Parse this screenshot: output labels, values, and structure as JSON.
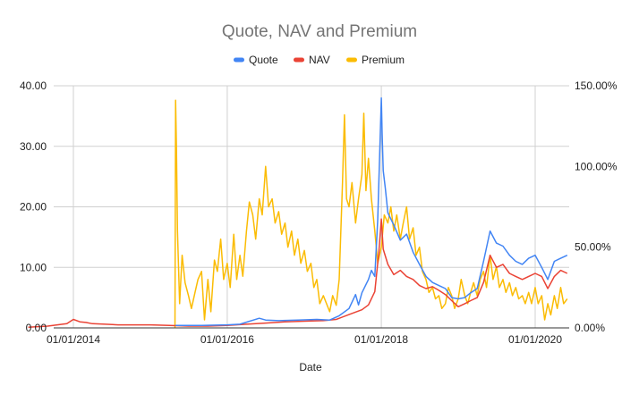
{
  "chart_data": {
    "type": "line",
    "title": "Quote, NAV and Premium",
    "xlabel": "Date",
    "ylabel": "",
    "y2label": "",
    "x_ticks": [
      "01/01/2014",
      "01/01/2016",
      "01/01/2018",
      "01/01/2020"
    ],
    "x_range": [
      "2013-06-01",
      "2020-06-15"
    ],
    "ylim": [
      0,
      40
    ],
    "y_ticks": [
      "0.00",
      "10.00",
      "20.00",
      "30.00",
      "40.00"
    ],
    "y2lim": [
      0,
      150
    ],
    "y2_ticks": [
      "0.00%",
      "50.00%",
      "100.00%",
      "150.00%"
    ],
    "grid": true,
    "legend": "top",
    "series": [
      {
        "name": "Quote",
        "axis": "left",
        "color": "#4285F4",
        "points": [
          [
            "2015-05-01",
            0.4
          ],
          [
            "2015-09-01",
            0.4
          ],
          [
            "2016-01-01",
            0.5
          ],
          [
            "2016-03-01",
            0.6
          ],
          [
            "2016-06-01",
            1.6
          ],
          [
            "2016-07-01",
            1.3
          ],
          [
            "2016-09-01",
            1.2
          ],
          [
            "2016-12-01",
            1.3
          ],
          [
            "2017-03-01",
            1.4
          ],
          [
            "2017-05-01",
            1.3
          ],
          [
            "2017-06-15",
            2.0
          ],
          [
            "2017-08-01",
            3.2
          ],
          [
            "2017-09-01",
            5.5
          ],
          [
            "2017-09-15",
            3.8
          ],
          [
            "2017-10-01",
            5.8
          ],
          [
            "2017-11-01",
            8.0
          ],
          [
            "2017-11-15",
            9.5
          ],
          [
            "2017-12-01",
            8.5
          ],
          [
            "2017-12-15",
            18.0
          ],
          [
            "2018-01-01",
            38.0
          ],
          [
            "2018-01-05",
            32.0
          ],
          [
            "2018-01-10",
            26.0
          ],
          [
            "2018-01-20",
            23.0
          ],
          [
            "2018-02-01",
            19.0
          ],
          [
            "2018-03-01",
            17.0
          ],
          [
            "2018-04-01",
            14.5
          ],
          [
            "2018-05-01",
            15.5
          ],
          [
            "2018-06-01",
            12.5
          ],
          [
            "2018-07-01",
            10.5
          ],
          [
            "2018-08-01",
            8.5
          ],
          [
            "2018-09-01",
            7.5
          ],
          [
            "2018-10-01",
            7.0
          ],
          [
            "2018-11-01",
            6.5
          ],
          [
            "2018-12-01",
            5.0
          ],
          [
            "2019-01-01",
            4.8
          ],
          [
            "2019-02-01",
            5.0
          ],
          [
            "2019-03-01",
            5.8
          ],
          [
            "2019-04-01",
            6.5
          ],
          [
            "2019-05-01",
            11.0
          ],
          [
            "2019-06-01",
            16.0
          ],
          [
            "2019-07-01",
            14.0
          ],
          [
            "2019-08-01",
            13.5
          ],
          [
            "2019-09-01",
            12.0
          ],
          [
            "2019-10-01",
            11.0
          ],
          [
            "2019-11-01",
            10.5
          ],
          [
            "2019-12-01",
            11.5
          ],
          [
            "2020-01-01",
            12.0
          ],
          [
            "2020-02-01",
            10.0
          ],
          [
            "2020-03-01",
            8.0
          ],
          [
            "2020-04-01",
            11.0
          ],
          [
            "2020-05-01",
            11.5
          ],
          [
            "2020-06-01",
            12.0
          ]
        ]
      },
      {
        "name": "NAV",
        "axis": "left",
        "color": "#EA4335",
        "points": [
          [
            "2013-06-01",
            0.1
          ],
          [
            "2013-09-01",
            0.3
          ],
          [
            "2013-12-01",
            0.7
          ],
          [
            "2014-01-01",
            1.4
          ],
          [
            "2014-02-01",
            1.0
          ],
          [
            "2014-03-01",
            0.9
          ],
          [
            "2014-04-01",
            0.7
          ],
          [
            "2014-06-01",
            0.6
          ],
          [
            "2014-08-01",
            0.5
          ],
          [
            "2014-10-01",
            0.5
          ],
          [
            "2015-01-01",
            0.5
          ],
          [
            "2015-04-01",
            0.4
          ],
          [
            "2015-07-01",
            0.3
          ],
          [
            "2015-10-01",
            0.3
          ],
          [
            "2016-01-01",
            0.4
          ],
          [
            "2016-04-01",
            0.6
          ],
          [
            "2016-07-01",
            0.8
          ],
          [
            "2016-10-01",
            1.0
          ],
          [
            "2017-01-01",
            1.1
          ],
          [
            "2017-04-01",
            1.2
          ],
          [
            "2017-06-01",
            1.4
          ],
          [
            "2017-08-01",
            2.2
          ],
          [
            "2017-10-01",
            3.0
          ],
          [
            "2017-11-01",
            3.8
          ],
          [
            "2017-12-01",
            6.0
          ],
          [
            "2017-12-20",
            12.5
          ],
          [
            "2018-01-01",
            18.0
          ],
          [
            "2018-01-10",
            13.0
          ],
          [
            "2018-02-01",
            10.5
          ],
          [
            "2018-03-01",
            8.8
          ],
          [
            "2018-04-01",
            9.5
          ],
          [
            "2018-05-01",
            8.5
          ],
          [
            "2018-06-01",
            8.0
          ],
          [
            "2018-07-01",
            7.0
          ],
          [
            "2018-08-01",
            6.5
          ],
          [
            "2018-09-01",
            6.8
          ],
          [
            "2018-10-01",
            6.2
          ],
          [
            "2018-11-01",
            5.5
          ],
          [
            "2018-12-01",
            4.5
          ],
          [
            "2019-01-01",
            3.5
          ],
          [
            "2019-02-01",
            4.0
          ],
          [
            "2019-03-01",
            4.5
          ],
          [
            "2019-04-01",
            5.0
          ],
          [
            "2019-05-01",
            7.5
          ],
          [
            "2019-06-01",
            12.0
          ],
          [
            "2019-07-01",
            10.0
          ],
          [
            "2019-08-01",
            10.5
          ],
          [
            "2019-09-01",
            9.0
          ],
          [
            "2019-10-01",
            8.5
          ],
          [
            "2019-11-01",
            8.0
          ],
          [
            "2019-12-01",
            8.5
          ],
          [
            "2020-01-01",
            9.0
          ],
          [
            "2020-02-01",
            8.5
          ],
          [
            "2020-03-01",
            6.5
          ],
          [
            "2020-04-01",
            8.5
          ],
          [
            "2020-05-01",
            9.5
          ],
          [
            "2020-06-01",
            9.0
          ]
        ]
      },
      {
        "name": "Premium",
        "axis": "right",
        "color": "#FBBC04",
        "points": [
          [
            "2015-04-28",
            0
          ],
          [
            "2015-05-01",
            141
          ],
          [
            "2015-05-05",
            110
          ],
          [
            "2015-05-10",
            60
          ],
          [
            "2015-05-20",
            15
          ],
          [
            "2015-06-01",
            45
          ],
          [
            "2015-06-15",
            28
          ],
          [
            "2015-07-01",
            20
          ],
          [
            "2015-07-15",
            12
          ],
          [
            "2015-08-01",
            22
          ],
          [
            "2015-08-15",
            30
          ],
          [
            "2015-09-01",
            35
          ],
          [
            "2015-09-15",
            5
          ],
          [
            "2015-10-01",
            30
          ],
          [
            "2015-10-15",
            10
          ],
          [
            "2015-11-01",
            42
          ],
          [
            "2015-11-15",
            35
          ],
          [
            "2015-12-01",
            55
          ],
          [
            "2015-12-15",
            30
          ],
          [
            "2016-01-01",
            40
          ],
          [
            "2016-01-15",
            25
          ],
          [
            "2016-02-01",
            58
          ],
          [
            "2016-02-15",
            30
          ],
          [
            "2016-03-01",
            45
          ],
          [
            "2016-03-15",
            32
          ],
          [
            "2016-04-01",
            60
          ],
          [
            "2016-04-15",
            78
          ],
          [
            "2016-05-01",
            70
          ],
          [
            "2016-05-15",
            55
          ],
          [
            "2016-06-01",
            80
          ],
          [
            "2016-06-15",
            70
          ],
          [
            "2016-07-01",
            100
          ],
          [
            "2016-07-15",
            75
          ],
          [
            "2016-08-01",
            80
          ],
          [
            "2016-08-15",
            65
          ],
          [
            "2016-09-01",
            72
          ],
          [
            "2016-09-15",
            58
          ],
          [
            "2016-10-01",
            65
          ],
          [
            "2016-10-15",
            50
          ],
          [
            "2016-11-01",
            60
          ],
          [
            "2016-11-15",
            45
          ],
          [
            "2016-12-01",
            55
          ],
          [
            "2016-12-15",
            40
          ],
          [
            "2017-01-01",
            48
          ],
          [
            "2017-01-15",
            35
          ],
          [
            "2017-02-01",
            40
          ],
          [
            "2017-02-15",
            25
          ],
          [
            "2017-03-01",
            30
          ],
          [
            "2017-03-15",
            15
          ],
          [
            "2017-04-01",
            20
          ],
          [
            "2017-05-01",
            10
          ],
          [
            "2017-05-15",
            20
          ],
          [
            "2017-06-01",
            14
          ],
          [
            "2017-06-15",
            30
          ],
          [
            "2017-07-01",
            90
          ],
          [
            "2017-07-10",
            132
          ],
          [
            "2017-07-20",
            80
          ],
          [
            "2017-08-01",
            75
          ],
          [
            "2017-08-15",
            90
          ],
          [
            "2017-09-01",
            65
          ],
          [
            "2017-09-15",
            80
          ],
          [
            "2017-10-01",
            95
          ],
          [
            "2017-10-10",
            133
          ],
          [
            "2017-10-20",
            85
          ],
          [
            "2017-11-01",
            105
          ],
          [
            "2017-11-15",
            80
          ],
          [
            "2017-12-01",
            60
          ],
          [
            "2017-12-15",
            40
          ],
          [
            "2018-01-01",
            50
          ],
          [
            "2018-01-15",
            70
          ],
          [
            "2018-02-01",
            65
          ],
          [
            "2018-02-15",
            75
          ],
          [
            "2018-03-01",
            60
          ],
          [
            "2018-03-15",
            70
          ],
          [
            "2018-04-01",
            55
          ],
          [
            "2018-04-15",
            65
          ],
          [
            "2018-05-01",
            75
          ],
          [
            "2018-05-15",
            55
          ],
          [
            "2018-06-01",
            62
          ],
          [
            "2018-06-15",
            45
          ],
          [
            "2018-07-01",
            50
          ],
          [
            "2018-07-15",
            35
          ],
          [
            "2018-08-01",
            30
          ],
          [
            "2018-08-15",
            22
          ],
          [
            "2018-09-01",
            25
          ],
          [
            "2018-09-15",
            18
          ],
          [
            "2018-10-01",
            20
          ],
          [
            "2018-10-15",
            12
          ],
          [
            "2018-11-01",
            15
          ],
          [
            "2018-11-15",
            25
          ],
          [
            "2018-12-01",
            20
          ],
          [
            "2018-12-15",
            12
          ],
          [
            "2019-01-01",
            18
          ],
          [
            "2019-01-15",
            30
          ],
          [
            "2019-02-01",
            20
          ],
          [
            "2019-02-15",
            15
          ],
          [
            "2019-03-01",
            22
          ],
          [
            "2019-03-15",
            28
          ],
          [
            "2019-04-01",
            20
          ],
          [
            "2019-04-15",
            30
          ],
          [
            "2019-05-01",
            35
          ],
          [
            "2019-05-15",
            25
          ],
          [
            "2019-06-01",
            45
          ],
          [
            "2019-06-15",
            30
          ],
          [
            "2019-07-01",
            38
          ],
          [
            "2019-07-15",
            25
          ],
          [
            "2019-08-01",
            30
          ],
          [
            "2019-08-15",
            22
          ],
          [
            "2019-09-01",
            28
          ],
          [
            "2019-09-15",
            20
          ],
          [
            "2019-10-01",
            25
          ],
          [
            "2019-10-15",
            18
          ],
          [
            "2019-11-01",
            20
          ],
          [
            "2019-11-15",
            15
          ],
          [
            "2019-12-01",
            22
          ],
          [
            "2019-12-15",
            15
          ],
          [
            "2020-01-01",
            25
          ],
          [
            "2020-01-15",
            15
          ],
          [
            "2020-02-01",
            20
          ],
          [
            "2020-02-15",
            5
          ],
          [
            "2020-03-01",
            15
          ],
          [
            "2020-03-15",
            8
          ],
          [
            "2020-04-01",
            20
          ],
          [
            "2020-04-15",
            12
          ],
          [
            "2020-05-01",
            25
          ],
          [
            "2020-05-15",
            15
          ],
          [
            "2020-06-01",
            18
          ]
        ]
      }
    ]
  }
}
